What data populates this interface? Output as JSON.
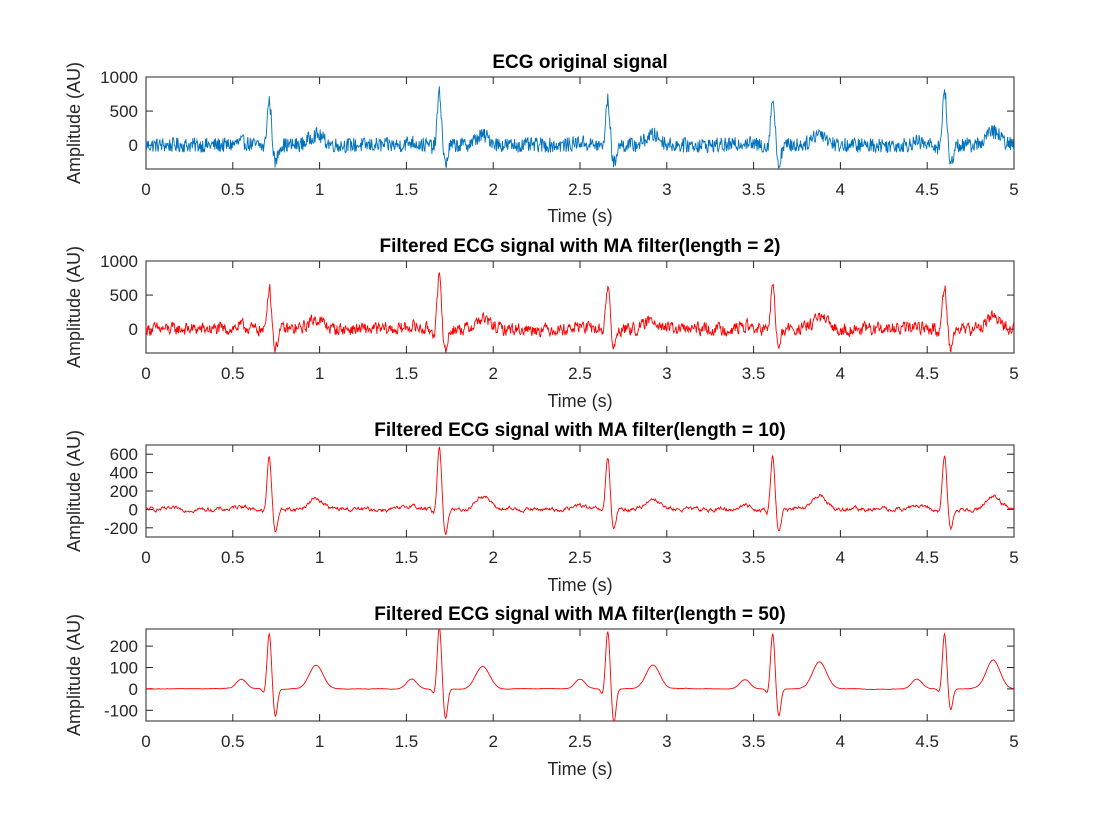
{
  "chart_data": [
    {
      "type": "line",
      "title": "ECG original signal",
      "xlabel": "Time (s)",
      "ylabel": "Amplitude (AU)",
      "xlim": [
        0,
        5
      ],
      "ylim": [
        -350,
        1000
      ],
      "xticks": [
        "0",
        "0.5",
        "1",
        "1.5",
        "2",
        "2.5",
        "3",
        "3.5",
        "4",
        "4.5",
        "5"
      ],
      "yticks": [
        "0",
        "500",
        "1000"
      ],
      "line_color": "#0072BD",
      "grid": false,
      "series": [
        {
          "noise_amplitude": 110,
          "beats": [
            {
              "t": 0.71,
              "peak": 650,
              "trough": -270
            },
            {
              "t": 1.69,
              "peak": 760,
              "trough": -300
            },
            {
              "t": 2.66,
              "peak": 660,
              "trough": -290
            },
            {
              "t": 3.61,
              "peak": 680,
              "trough": -280
            },
            {
              "t": 4.6,
              "peak": 800,
              "trough": -300
            }
          ],
          "t_waves": [
            {
              "t": 0.98,
              "value": 150
            },
            {
              "t": 1.94,
              "value": 140
            },
            {
              "t": 2.92,
              "value": 150
            },
            {
              "t": 3.88,
              "value": 180
            },
            {
              "t": 4.88,
              "value": 200
            }
          ]
        }
      ]
    },
    {
      "type": "line",
      "title": "Filtered ECG signal with MA filter(length = 2)",
      "xlabel": "Time (s)",
      "ylabel": "Amplitude (AU)",
      "xlim": [
        0,
        5
      ],
      "ylim": [
        -350,
        1000
      ],
      "xticks": [
        "0",
        "0.5",
        "1",
        "1.5",
        "2",
        "2.5",
        "3",
        "3.5",
        "4",
        "4.5",
        "5"
      ],
      "yticks": [
        "0",
        "500",
        "1000"
      ],
      "line_color": "#FF0000",
      "grid": false,
      "series": [
        {
          "noise_amplitude": 85,
          "beats": [
            {
              "t": 0.71,
              "peak": 630,
              "trough": -300
            },
            {
              "t": 1.69,
              "peak": 740,
              "trough": -340
            },
            {
              "t": 2.66,
              "peak": 630,
              "trough": -300
            },
            {
              "t": 3.61,
              "peak": 640,
              "trough": -300
            },
            {
              "t": 4.6,
              "peak": 640,
              "trough": -300
            }
          ],
          "t_waves": [
            {
              "t": 0.98,
              "value": 150
            },
            {
              "t": 1.94,
              "value": 150
            },
            {
              "t": 2.92,
              "value": 140
            },
            {
              "t": 3.88,
              "value": 170
            },
            {
              "t": 4.88,
              "value": 190
            }
          ]
        }
      ]
    },
    {
      "type": "line",
      "title": "Filtered ECG signal with MA filter(length = 10)",
      "xlabel": "Time (s)",
      "ylabel": "Amplitude (AU)",
      "xlim": [
        0,
        5
      ],
      "ylim": [
        -300,
        700
      ],
      "xticks": [
        "0",
        "0.5",
        "1",
        "1.5",
        "2",
        "2.5",
        "3",
        "3.5",
        "4",
        "4.5",
        "5"
      ],
      "yticks": [
        "-200",
        "0",
        "200",
        "400",
        "600"
      ],
      "line_color": "#FF0000",
      "grid": false,
      "series": [
        {
          "noise_amplitude": 30,
          "beats": [
            {
              "t": 0.71,
              "peak": 570,
              "trough": -250
            },
            {
              "t": 1.69,
              "peak": 700,
              "trough": -280
            },
            {
              "t": 2.66,
              "peak": 570,
              "trough": -240
            },
            {
              "t": 3.61,
              "peak": 580,
              "trough": -260
            },
            {
              "t": 4.6,
              "peak": 580,
              "trough": -220
            }
          ],
          "t_waves": [
            {
              "t": 0.98,
              "value": 120
            },
            {
              "t": 1.94,
              "value": 150
            },
            {
              "t": 2.92,
              "value": 120
            },
            {
              "t": 3.88,
              "value": 150
            },
            {
              "t": 4.88,
              "value": 150
            }
          ]
        }
      ]
    },
    {
      "type": "line",
      "title": "Filtered ECG signal with MA filter(length = 50)",
      "xlabel": "Time (s)",
      "ylabel": "Amplitude (AU)",
      "xlim": [
        0,
        5
      ],
      "ylim": [
        -150,
        280
      ],
      "xticks": [
        "0",
        "0.5",
        "1",
        "1.5",
        "2",
        "2.5",
        "3",
        "3.5",
        "4",
        "4.5",
        "5"
      ],
      "yticks": [
        "-100",
        "0",
        "100",
        "200"
      ],
      "line_color": "#FF0000",
      "grid": false,
      "series": [
        {
          "noise_amplitude": 5,
          "beats": [
            {
              "t": 0.71,
              "peak": 260,
              "trough": -130
            },
            {
              "t": 1.69,
              "peak": 290,
              "trough": -140
            },
            {
              "t": 2.66,
              "peak": 270,
              "trough": -160
            },
            {
              "t": 3.61,
              "peak": 260,
              "trough": -130
            },
            {
              "t": 4.6,
              "peak": 260,
              "trough": -100
            }
          ],
          "t_waves": [
            {
              "t": 0.98,
              "value": 110
            },
            {
              "t": 1.94,
              "value": 105
            },
            {
              "t": 2.92,
              "value": 110
            },
            {
              "t": 3.88,
              "value": 125
            },
            {
              "t": 4.88,
              "value": 135
            }
          ]
        }
      ]
    }
  ]
}
